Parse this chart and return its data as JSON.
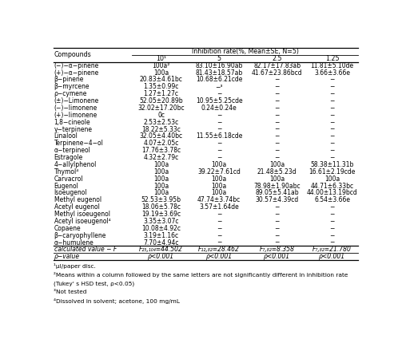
{
  "title": "Inhibition rate(%, Mean±SE, N=5)",
  "col_headers": [
    "Compounds",
    "10¹",
    "5",
    "2.5",
    "1.25"
  ],
  "rows": [
    [
      "(−)−α−pinene",
      "100a²",
      "83.10±16.90ab",
      "82.17±17.83ab",
      "11.81±5.10de"
    ],
    [
      "(+)−α−pinene",
      "100a",
      "81.43±18.57ab",
      "41.67±23.86bcd",
      "3.66±3.66e"
    ],
    [
      "β−pinene",
      "20.83±4.61bc",
      "10.68±6.21cde",
      "−",
      "−"
    ],
    [
      "β−myrcene",
      "1.35±0.99c",
      "−³",
      "−",
      "−"
    ],
    [
      "ρ−cymene",
      "1.27±1.27c",
      "−",
      "−",
      "−"
    ],
    [
      "(±)−Limonene",
      "52.05±20.89b",
      "10.95±5.25cde",
      "−",
      "−"
    ],
    [
      "(−)−limonene",
      "32.02±17.20bc",
      "0.24±0.24e",
      "−",
      "−"
    ],
    [
      "(+)−limonene",
      "0c",
      "−",
      "−",
      "−"
    ],
    [
      "1,8−cineole",
      "2.53±2.53c",
      "−",
      "−",
      "−"
    ],
    [
      "γ−terpinene",
      "18.22±5.33c",
      "−",
      "−",
      "−"
    ],
    [
      "Linalool",
      "32.05±4.40bc",
      "11.55±6.18cde",
      "−",
      "−"
    ],
    [
      "Terpinene−4−ol",
      "4.07±2.05c",
      "−",
      "−",
      "−"
    ],
    [
      "α−terpineol",
      "17.76±3.78c",
      "−",
      "−",
      "−"
    ],
    [
      "Estragole",
      "4.32±2.79c",
      "−",
      "−",
      "−"
    ],
    [
      "4−allylphenol",
      "100a",
      "100a",
      "100a",
      "58.38±11.31b"
    ],
    [
      "Thymol⁴",
      "100a",
      "39.22±7.61cd",
      "21.48±5.23d",
      "16.61±2.19cde"
    ],
    [
      "Carvacrol",
      "100a",
      "100a",
      "100a",
      "100a"
    ],
    [
      "Eugenol",
      "100a",
      "100a",
      "78.98±1.90abc",
      "44.71±6.33bc"
    ],
    [
      "Isoeugenol",
      "100a",
      "100a",
      "89.05±5.41ab",
      "44.00±13.19bcd"
    ],
    [
      "Methyl eugenol",
      "52.53±3.95b",
      "47.74±3.74bc",
      "30.57±4.39cd",
      "6.54±3.66e"
    ],
    [
      "Acetyl eugenol",
      "18.06±5.78c",
      "3.57±1.64de",
      "−",
      "−"
    ],
    [
      "Methyl isoeugenol",
      "19.19±3.69c",
      "−",
      "−",
      "−"
    ],
    [
      "Acetyl isoeugenol⁴",
      "3.35±3.07c",
      "−",
      "−",
      "−"
    ],
    [
      "Copaene",
      "10.08±4.92c",
      "−",
      "−",
      "−"
    ],
    [
      "β−caryophyllene",
      "3.19±1.16c",
      "−",
      "−",
      "−"
    ],
    [
      "α−humulene",
      "7.70±4.94c",
      "−",
      "−",
      "−"
    ],
    [
      "calculated value − F",
      "F₂₅,₁₀₄=44.502",
      "F₁₂,₈₂=28.462",
      "F₇,₈₂=8.358",
      "F₇,₈₂=21.780"
    ],
    [
      "ρ−value",
      "ρ<0.001",
      "ρ<0.001",
      "ρ<0.001",
      "ρ<0.001"
    ]
  ],
  "footnotes": [
    "¹μl/paper disc.",
    "²Means within a column followed by the same letters are not significantly different in inhibition rate",
    "(Tukey' s HSD test, ρ<0.05)",
    "³Not tested",
    "⁴Dissolved in solvent; acetone, 100 mg/mL"
  ],
  "bg_color": "#ffffff",
  "text_color": "#000000",
  "font_size": 5.5,
  "header_font_size": 5.7
}
